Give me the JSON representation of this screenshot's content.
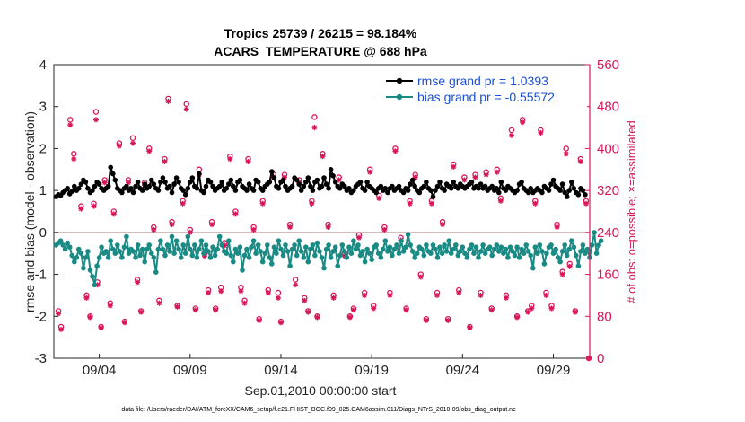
{
  "chart_data": {
    "type": "line",
    "title_line1": "Tropics 25739 / 26215 = 98.184%",
    "title_line2": "ACARS_TEMPERATURE @ 688 hPa",
    "xlabel": "Sep.01,2010 00:00:00 start",
    "ylabel_left": "rmse and bias (model - observation)",
    "ylabel_right": "# of obs: o=possible; ×=assimilated",
    "xlim": [
      1.5,
      31.0
    ],
    "ylim_left": [
      -3,
      4
    ],
    "ylim_right": [
      0,
      560
    ],
    "x_tick_values": [
      4,
      9,
      14,
      19,
      24,
      29
    ],
    "x_tick_labels": [
      "09/04",
      "09/09",
      "09/14",
      "09/19",
      "09/24",
      "09/29"
    ],
    "y_left_ticks": [
      "-3",
      "-2",
      "-1",
      "0",
      "1",
      "2",
      "3",
      "4"
    ],
    "y_right_ticks": [
      "0",
      "80",
      "160",
      "240",
      "320",
      "400",
      "480",
      "560"
    ],
    "footnote": "data file: /Users/raeder/DAI/ATM_forcXX/CAM6_setup/f.e21.FHIST_BGC.f09_025.CAM6assim.011/Diags_NTrS_2010-09/obs_diag_output.nc",
    "colors": {
      "rmse": "#000000",
      "bias": "#1a8a84",
      "obs": "#d6175a",
      "legend_text": "#1a4fd6",
      "zero_line": "#c9a9a9"
    },
    "series": [
      {
        "name": "rmse grand pr = 1.0393",
        "legend": "rmse grand pr = 1.0393",
        "x_start": 1.625,
        "x_step": 0.125,
        "values": [
          0.85,
          0.9,
          0.88,
          0.95,
          1.0,
          1.05,
          0.92,
          0.98,
          1.1,
          1.0,
          1.05,
          1.15,
          1.25,
          1.2,
          1.05,
          0.95,
          1.0,
          1.1,
          1.2,
          1.15,
          1.05,
          1.0,
          1.05,
          1.1,
          1.55,
          1.4,
          1.25,
          1.05,
          1.0,
          0.95,
          1.05,
          1.1,
          1.0,
          1.05,
          0.95,
          1.1,
          1.2,
          1.05,
          1.0,
          1.15,
          1.05,
          1.1,
          1.25,
          1.15,
          1.05,
          1.0,
          1.2,
          1.3,
          1.2,
          1.05,
          1.1,
          0.95,
          1.15,
          1.3,
          1.2,
          1.05,
          1.0,
          0.9,
          1.05,
          1.2,
          1.3,
          1.1,
          1.05,
          1.4,
          1.0,
          0.95,
          1.1,
          1.25,
          1.2,
          1.1,
          1.0,
          1.05,
          1.1,
          1.2,
          1.0,
          1.05,
          1.15,
          1.25,
          1.1,
          1.0,
          1.2,
          1.25,
          1.1,
          1.05,
          1.0,
          1.15,
          1.05,
          1.0,
          1.25,
          1.2,
          1.05,
          1.0,
          1.1,
          1.15,
          1.2,
          1.45,
          1.3,
          1.1,
          1.05,
          1.2,
          1.25,
          1.1,
          1.0,
          1.05,
          1.1,
          1.3,
          1.25,
          1.15,
          1.0,
          1.1,
          1.2,
          1.3,
          1.1,
          1.0,
          1.2,
          1.25,
          1.05,
          1.1,
          1.3,
          1.15,
          1.05,
          1.5,
          1.35,
          1.2,
          1.1,
          1.05,
          1.15,
          1.1,
          1.0,
          1.05,
          0.95,
          1.0,
          1.1,
          1.15,
          1.2,
          1.05,
          1.0,
          1.2,
          1.1,
          1.05,
          1.0,
          0.95,
          1.05,
          1.1,
          1.0,
          1.05,
          0.95,
          1.05,
          1.1,
          1.0,
          1.05,
          1.1,
          1.0,
          0.95,
          1.05,
          1.0,
          1.15,
          1.25,
          1.1,
          1.0,
          0.95,
          1.05,
          1.1,
          1.2,
          1.05,
          1.0,
          0.85,
          1.0,
          1.1,
          1.2,
          1.05,
          1.0,
          1.15,
          1.1,
          1.05,
          1.2,
          1.1,
          1.05,
          1.15,
          1.1,
          1.05,
          1.1,
          1.15,
          1.2,
          1.05,
          1.1,
          1.05,
          1.15,
          1.05,
          1.1,
          1.0,
          1.05,
          1.1,
          1.0,
          1.05,
          0.95,
          1.2,
          1.05,
          1.0,
          1.1,
          1.05,
          1.0,
          0.95,
          1.0,
          1.15,
          1.2,
          1.05,
          1.0,
          0.95,
          1.05,
          0.95,
          1.0,
          1.05,
          1.0,
          0.95,
          1.1,
          1.05,
          1.0,
          1.15,
          1.25,
          1.1,
          1.05,
          1.0,
          1.15,
          0.95,
          0.85,
          1.0,
          1.2,
          1.05,
          0.95,
          0.9,
          1.05,
          1.0,
          0.9
        ]
      },
      {
        "name": "bias grand pr = -0.55572",
        "legend": "bias grand pr = -0.55572",
        "x_start": 1.625,
        "x_step": 0.125,
        "values": [
          -0.3,
          -0.25,
          -0.2,
          -0.3,
          -0.4,
          -0.25,
          -0.35,
          -0.55,
          -0.7,
          -0.6,
          -0.4,
          -0.5,
          -0.85,
          -0.6,
          -0.45,
          -0.9,
          -1.05,
          -1.25,
          -0.8,
          -0.6,
          -0.35,
          -0.5,
          -0.45,
          -0.6,
          -0.2,
          -0.4,
          -0.5,
          -0.3,
          -0.45,
          -0.6,
          -0.35,
          -0.1,
          -0.5,
          -0.4,
          -0.45,
          -0.6,
          -0.3,
          -0.55,
          -0.4,
          -0.7,
          -0.4,
          -0.3,
          -0.5,
          -0.6,
          -0.95,
          -0.4,
          -0.2,
          -0.4,
          -0.55,
          -0.3,
          -0.45,
          -0.1,
          -0.5,
          -0.2,
          -0.4,
          -0.6,
          -0.3,
          -0.5,
          -0.1,
          -0.4,
          -0.55,
          -0.3,
          -0.6,
          -0.4,
          -0.2,
          -0.5,
          -0.3,
          -0.45,
          -0.6,
          -0.35,
          -0.55,
          -0.4,
          -0.1,
          -0.3,
          -0.45,
          -0.5,
          -0.2,
          -0.55,
          -0.7,
          -0.4,
          -0.5,
          -0.35,
          -0.9,
          -0.55,
          -0.4,
          -0.6,
          -0.35,
          -0.2,
          -0.5,
          -0.3,
          -0.45,
          -0.7,
          -0.5,
          -0.3,
          -0.6,
          -0.75,
          -0.35,
          -0.5,
          -0.2,
          -0.4,
          -0.55,
          -0.3,
          -0.45,
          -0.8,
          -0.4,
          -0.3,
          -0.55,
          -0.2,
          -0.45,
          -0.6,
          -0.35,
          -0.7,
          -0.4,
          -0.3,
          -0.55,
          -0.25,
          -0.45,
          -0.6,
          -0.85,
          -0.4,
          -0.3,
          -0.6,
          -0.45,
          -0.35,
          -0.8,
          -0.55,
          -0.3,
          -0.45,
          -0.6,
          -0.35,
          -0.5,
          -0.2,
          -0.4,
          -0.3,
          -0.55,
          -0.45,
          -0.7,
          -0.4,
          -0.5,
          -0.65,
          -0.35,
          -0.3,
          -0.5,
          -0.6,
          -0.4,
          -0.2,
          -0.45,
          -0.35,
          -0.55,
          -0.4,
          -0.3,
          -0.5,
          -0.2,
          -0.45,
          -0.35,
          -0.05,
          -0.3,
          -0.45,
          -0.6,
          -0.5,
          -0.35,
          -0.4,
          -0.55,
          -0.3,
          -0.45,
          -0.5,
          -0.3,
          -0.4,
          -0.6,
          -0.35,
          -0.5,
          -0.3,
          -0.45,
          -0.2,
          -0.5,
          -0.4,
          -0.3,
          -0.55,
          -0.45,
          -0.35,
          -0.5,
          -0.6,
          -0.4,
          -0.3,
          -0.5,
          -0.35,
          -0.6,
          -0.45,
          -0.3,
          -0.5,
          -0.4,
          -0.35,
          -0.55,
          -0.4,
          -0.3,
          -0.45,
          -0.35,
          -0.5,
          -0.4,
          -0.6,
          -0.35,
          -0.45,
          -0.55,
          -0.35,
          -0.6,
          -0.4,
          -0.5,
          -0.3,
          -0.45,
          -0.55,
          -0.85,
          -0.35,
          -0.5,
          -0.3,
          -0.45,
          -0.75,
          -0.5,
          -0.35,
          -0.3,
          -0.5,
          -0.4,
          -0.6,
          -0.7,
          -0.45,
          -0.3,
          -0.55,
          -0.4,
          -0.2,
          -0.35,
          -0.55,
          -0.8,
          -0.45,
          -0.3,
          -0.5,
          -0.4,
          -0.6,
          -0.3,
          0.0,
          -0.5,
          -0.3,
          -0.2
        ]
      }
    ],
    "obs_possible": [
      [
        1.75,
        90
      ],
      [
        1.9,
        60
      ],
      [
        2.4,
        455
      ],
      [
        2.6,
        390
      ],
      [
        3.0,
        290
      ],
      [
        3.3,
        120
      ],
      [
        3.5,
        80
      ],
      [
        3.7,
        295
      ],
      [
        3.82,
        470
      ],
      [
        3.9,
        145
      ],
      [
        4.1,
        60
      ],
      [
        4.3,
        340
      ],
      [
        4.6,
        105
      ],
      [
        4.8,
        280
      ],
      [
        5.1,
        410
      ],
      [
        5.4,
        70
      ],
      [
        5.6,
        340
      ],
      [
        5.85,
        420
      ],
      [
        6.1,
        150
      ],
      [
        6.3,
        90
      ],
      [
        6.5,
        335
      ],
      [
        6.75,
        400
      ],
      [
        7.0,
        250
      ],
      [
        7.3,
        110
      ],
      [
        7.6,
        380
      ],
      [
        7.8,
        495
      ],
      [
        8.0,
        260
      ],
      [
        8.3,
        100
      ],
      [
        8.6,
        300
      ],
      [
        8.8,
        485
      ],
      [
        9.0,
        245
      ],
      [
        9.3,
        95
      ],
      [
        9.5,
        360
      ],
      [
        9.8,
        200
      ],
      [
        10.0,
        130
      ],
      [
        10.2,
        260
      ],
      [
        10.4,
        95
      ],
      [
        10.7,
        135
      ],
      [
        10.9,
        220
      ],
      [
        11.2,
        385
      ],
      [
        11.5,
        280
      ],
      [
        11.8,
        135
      ],
      [
        12.0,
        110
      ],
      [
        12.2,
        380
      ],
      [
        12.5,
        250
      ],
      [
        12.8,
        75
      ],
      [
        13.0,
        300
      ],
      [
        13.3,
        130
      ],
      [
        13.6,
        350
      ],
      [
        13.85,
        125
      ],
      [
        14.0,
        70
      ],
      [
        14.2,
        350
      ],
      [
        14.5,
        255
      ],
      [
        14.8,
        150
      ],
      [
        15.0,
        340
      ],
      [
        15.3,
        115
      ],
      [
        15.5,
        90
      ],
      [
        15.7,
        300
      ],
      [
        15.85,
        460
      ],
      [
        16.0,
        80
      ],
      [
        16.3,
        390
      ],
      [
        16.6,
        255
      ],
      [
        16.9,
        120
      ],
      [
        17.2,
        345
      ],
      [
        17.5,
        200
      ],
      [
        17.8,
        80
      ],
      [
        18.0,
        95
      ],
      [
        18.3,
        235
      ],
      [
        18.6,
        125
      ],
      [
        18.9,
        360
      ],
      [
        19.1,
        100
      ],
      [
        19.4,
        310
      ],
      [
        19.7,
        250
      ],
      [
        20.0,
        125
      ],
      [
        20.3,
        400
      ],
      [
        20.6,
        230
      ],
      [
        20.9,
        95
      ],
      [
        21.1,
        300
      ],
      [
        21.4,
        350
      ],
      [
        21.7,
        160
      ],
      [
        22.0,
        75
      ],
      [
        22.3,
        300
      ],
      [
        22.6,
        125
      ],
      [
        22.9,
        260
      ],
      [
        23.2,
        75
      ],
      [
        23.5,
        370
      ],
      [
        23.8,
        130
      ],
      [
        24.1,
        345
      ],
      [
        24.4,
        60
      ],
      [
        24.7,
        350
      ],
      [
        25.0,
        125
      ],
      [
        25.3,
        355
      ],
      [
        25.6,
        95
      ],
      [
        25.9,
        360
      ],
      [
        26.1,
        305
      ],
      [
        26.4,
        120
      ],
      [
        26.7,
        435
      ],
      [
        27.0,
        80
      ],
      [
        27.3,
        455
      ],
      [
        27.6,
        90
      ],
      [
        27.8,
        100
      ],
      [
        28.0,
        300
      ],
      [
        28.3,
        435
      ],
      [
        28.6,
        125
      ],
      [
        28.9,
        100
      ],
      [
        29.2,
        255
      ],
      [
        29.5,
        165
      ],
      [
        29.7,
        400
      ],
      [
        29.9,
        180
      ],
      [
        30.2,
        90
      ],
      [
        30.5,
        380
      ],
      [
        30.8,
        300
      ],
      [
        30.95,
        0
      ]
    ],
    "obs_assimilated": [
      [
        1.75,
        85
      ],
      [
        1.9,
        55
      ],
      [
        2.4,
        445
      ],
      [
        2.6,
        380
      ],
      [
        3.0,
        285
      ],
      [
        3.3,
        115
      ],
      [
        3.5,
        78
      ],
      [
        3.7,
        290
      ],
      [
        3.82,
        455
      ],
      [
        3.9,
        140
      ],
      [
        4.1,
        58
      ],
      [
        4.3,
        335
      ],
      [
        4.6,
        100
      ],
      [
        4.8,
        275
      ],
      [
        5.1,
        405
      ],
      [
        5.4,
        68
      ],
      [
        5.6,
        335
      ],
      [
        5.85,
        410
      ],
      [
        6.1,
        145
      ],
      [
        6.3,
        88
      ],
      [
        6.5,
        330
      ],
      [
        6.75,
        395
      ],
      [
        7.0,
        245
      ],
      [
        7.3,
        105
      ],
      [
        7.6,
        375
      ],
      [
        7.8,
        490
      ],
      [
        8.0,
        255
      ],
      [
        8.3,
        98
      ],
      [
        8.6,
        295
      ],
      [
        8.8,
        475
      ],
      [
        9.0,
        240
      ],
      [
        9.3,
        92
      ],
      [
        9.5,
        350
      ],
      [
        9.8,
        195
      ],
      [
        10.0,
        125
      ],
      [
        10.2,
        255
      ],
      [
        10.4,
        92
      ],
      [
        10.7,
        128
      ],
      [
        10.9,
        215
      ],
      [
        11.2,
        380
      ],
      [
        11.5,
        275
      ],
      [
        11.8,
        128
      ],
      [
        12.0,
        105
      ],
      [
        12.2,
        375
      ],
      [
        12.5,
        245
      ],
      [
        12.8,
        72
      ],
      [
        13.0,
        295
      ],
      [
        13.3,
        125
      ],
      [
        13.6,
        345
      ],
      [
        13.85,
        115
      ],
      [
        14.0,
        68
      ],
      [
        14.2,
        345
      ],
      [
        14.5,
        250
      ],
      [
        14.8,
        140
      ],
      [
        15.0,
        335
      ],
      [
        15.3,
        110
      ],
      [
        15.5,
        88
      ],
      [
        15.7,
        295
      ],
      [
        15.85,
        440
      ],
      [
        16.0,
        78
      ],
      [
        16.3,
        385
      ],
      [
        16.6,
        250
      ],
      [
        16.9,
        115
      ],
      [
        17.2,
        340
      ],
      [
        17.5,
        195
      ],
      [
        17.8,
        78
      ],
      [
        18.0,
        92
      ],
      [
        18.3,
        230
      ],
      [
        18.6,
        120
      ],
      [
        18.9,
        355
      ],
      [
        19.1,
        95
      ],
      [
        19.4,
        305
      ],
      [
        19.7,
        245
      ],
      [
        20.0,
        120
      ],
      [
        20.3,
        395
      ],
      [
        20.6,
        225
      ],
      [
        20.9,
        92
      ],
      [
        21.1,
        295
      ],
      [
        21.4,
        345
      ],
      [
        21.7,
        155
      ],
      [
        22.0,
        72
      ],
      [
        22.3,
        295
      ],
      [
        22.6,
        120
      ],
      [
        22.9,
        255
      ],
      [
        23.2,
        72
      ],
      [
        23.5,
        365
      ],
      [
        23.8,
        125
      ],
      [
        24.1,
        340
      ],
      [
        24.4,
        58
      ],
      [
        24.7,
        345
      ],
      [
        25.0,
        120
      ],
      [
        25.3,
        350
      ],
      [
        25.6,
        92
      ],
      [
        25.9,
        355
      ],
      [
        26.1,
        300
      ],
      [
        26.4,
        115
      ],
      [
        26.7,
        425
      ],
      [
        27.0,
        78
      ],
      [
        27.3,
        450
      ],
      [
        27.6,
        88
      ],
      [
        27.8,
        95
      ],
      [
        28.0,
        295
      ],
      [
        28.3,
        430
      ],
      [
        28.6,
        120
      ],
      [
        28.9,
        95
      ],
      [
        29.2,
        250
      ],
      [
        29.5,
        160
      ],
      [
        29.7,
        390
      ],
      [
        29.9,
        175
      ],
      [
        30.2,
        88
      ],
      [
        30.5,
        375
      ],
      [
        30.8,
        295
      ],
      [
        30.95,
        0
      ]
    ]
  }
}
